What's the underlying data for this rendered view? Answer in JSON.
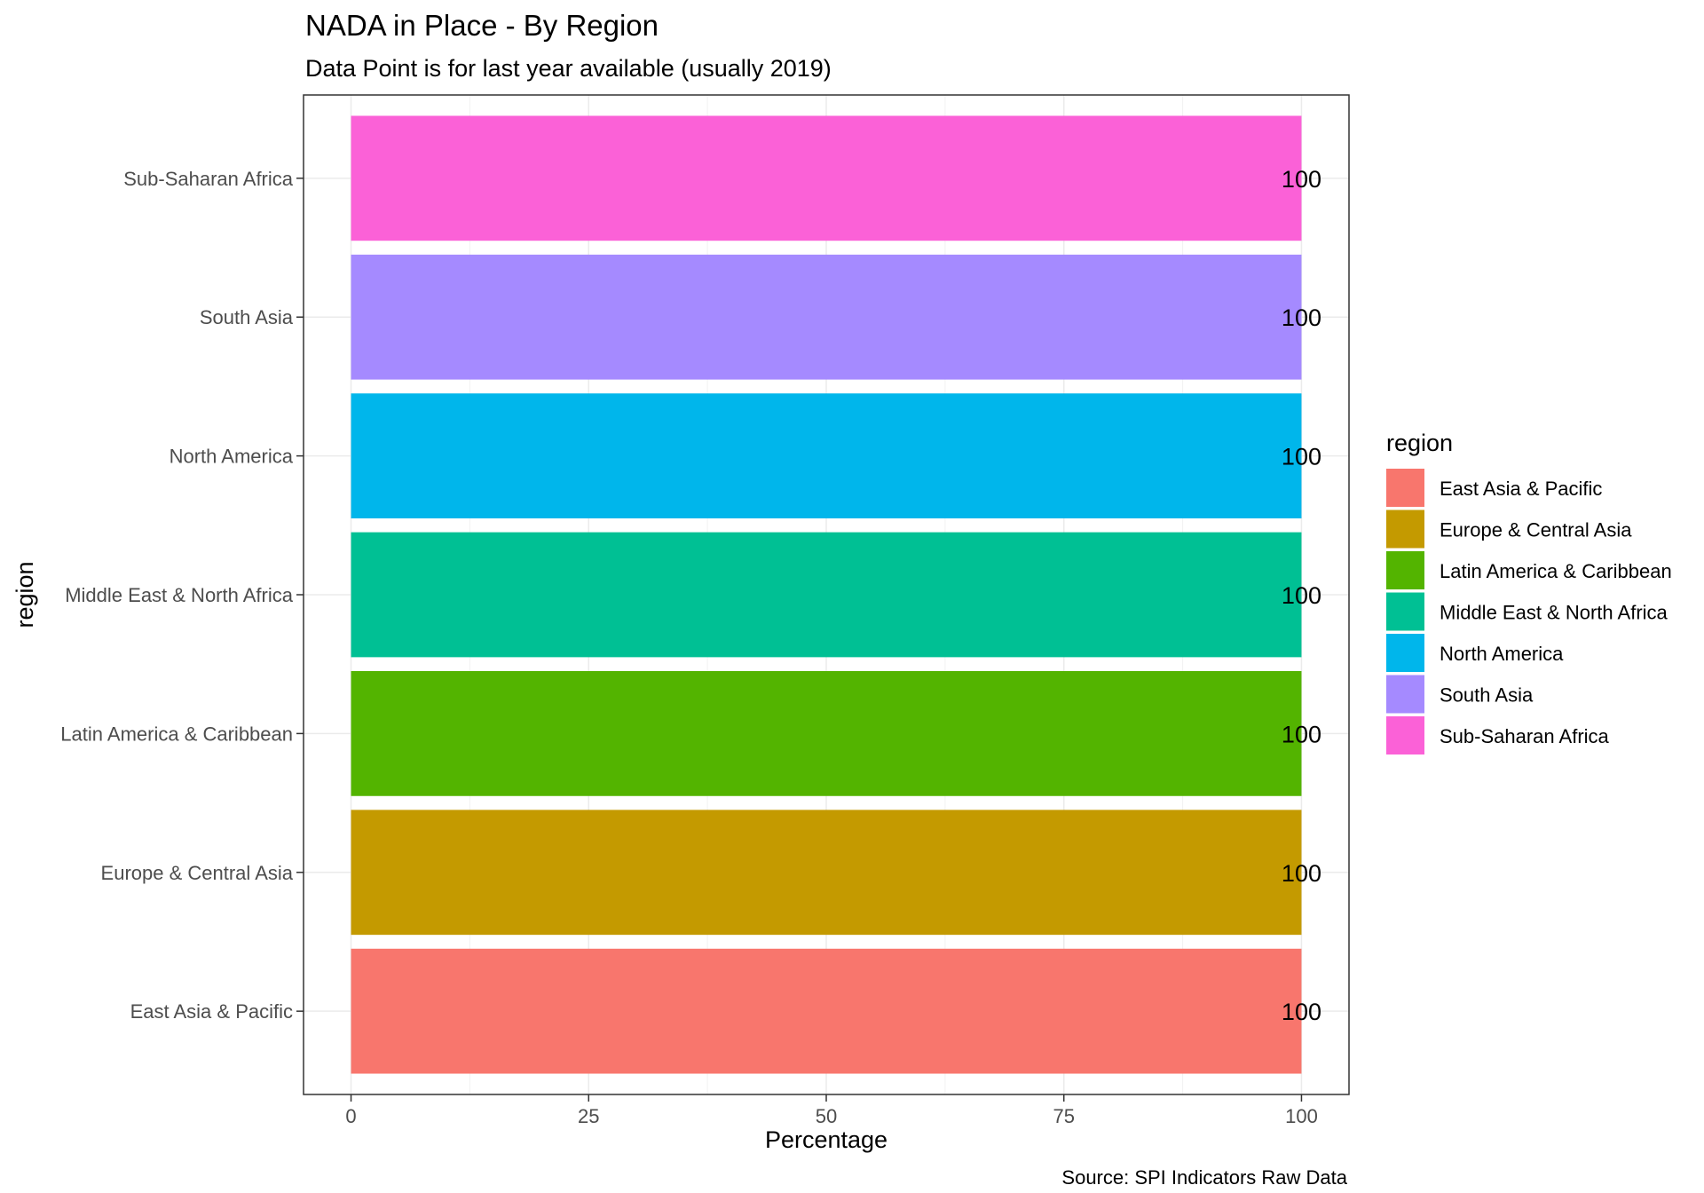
{
  "chart_data": {
    "type": "bar",
    "orientation": "horizontal",
    "title": "NADA in Place - By Region",
    "subtitle": "Data Point is for last year available (usually 2019)",
    "xlabel": "Percentage",
    "ylabel": "region",
    "xlim": [
      0,
      100
    ],
    "x_ticks": [
      "0",
      "25",
      "50",
      "75",
      "100"
    ],
    "categories": [
      "East Asia & Pacific",
      "Europe & Central Asia",
      "Latin America & Caribbean",
      "Middle East & North Africa",
      "North America",
      "South Asia",
      "Sub-Saharan Africa"
    ],
    "values": [
      100,
      100,
      100,
      100,
      100,
      100,
      100
    ],
    "data_labels": [
      "100",
      "100",
      "100",
      "100",
      "100",
      "100",
      "100"
    ],
    "colors": [
      "#F8766D",
      "#C49A00",
      "#53B400",
      "#00C094",
      "#00B6EB",
      "#A58AFF",
      "#FB61D7"
    ],
    "legend": {
      "title": "region",
      "position": "right",
      "entries": [
        "East Asia & Pacific",
        "Europe & Central Asia",
        "Latin America & Caribbean",
        "Middle East & North Africa",
        "North America",
        "South Asia",
        "Sub-Saharan Africa"
      ]
    },
    "caption": "Source: SPI Indicators Raw Data",
    "grid": true
  }
}
